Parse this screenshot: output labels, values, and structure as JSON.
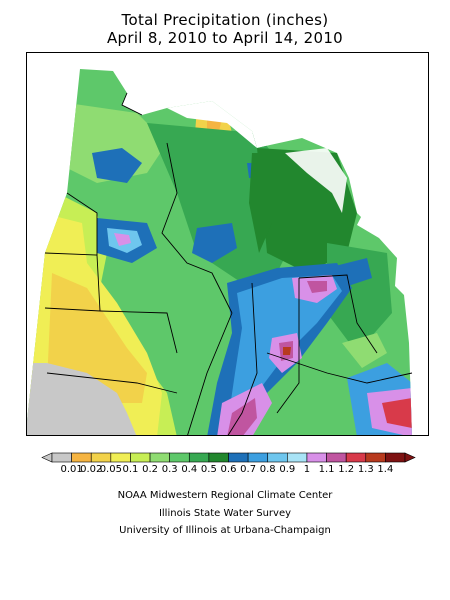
{
  "title_line1": "Total Precipitation (inches)",
  "title_line2": "April 8, 2010 to April 14, 2010",
  "legend": {
    "labels": [
      "0.01",
      "0.02",
      "0.05",
      "0.1",
      "0.2",
      "0.3",
      "0.4",
      "0.5",
      "0.6",
      "0.7",
      "0.8",
      "0.9",
      "1",
      "1.1",
      "1.2",
      "1.3",
      "1.4"
    ],
    "colors": [
      "#c8c8c8",
      "#f5b442",
      "#f2d24a",
      "#f0ee55",
      "#c7ee55",
      "#8fdc72",
      "#5ec86a",
      "#37a852",
      "#22872e",
      "#1e70b8",
      "#3c9fe0",
      "#6ec6ee",
      "#a8e3f6",
      "#d890e8",
      "#c055a0",
      "#d83a4a",
      "#b83a1e",
      "#7e1212"
    ]
  },
  "credits": [
    "NOAA Midwestern Regional Climate Center",
    "Illinois State Water Survey",
    "University of Illinois at Urbana-Champaign"
  ]
}
